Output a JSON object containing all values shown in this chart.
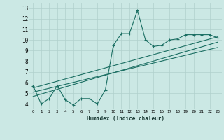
{
  "xlabel": "Humidex (Indice chaleur)",
  "bg_color": "#cbe8e4",
  "grid_color": "#b0d0cc",
  "line_color": "#1a6e62",
  "xlim": [
    -0.5,
    23.5
  ],
  "ylim": [
    3.5,
    13.5
  ],
  "main_x": [
    0,
    1,
    2,
    3,
    4,
    5,
    6,
    7,
    8,
    9,
    10,
    11,
    12,
    13,
    14,
    15,
    16,
    17,
    18,
    19,
    20,
    21,
    22,
    23
  ],
  "main_y": [
    5.7,
    4.0,
    4.5,
    5.7,
    4.4,
    3.9,
    4.5,
    4.5,
    4.0,
    5.3,
    9.5,
    10.6,
    10.6,
    12.8,
    10.0,
    9.4,
    9.5,
    10.0,
    10.1,
    10.5,
    10.5,
    10.5,
    10.5,
    10.2
  ],
  "trend1_x": [
    0,
    23
  ],
  "trend1_y": [
    4.7,
    9.8
  ],
  "trend2_x": [
    0,
    23
  ],
  "trend2_y": [
    5.1,
    9.3
  ],
  "trend3_x": [
    0,
    23
  ],
  "trend3_y": [
    5.5,
    10.3
  ]
}
